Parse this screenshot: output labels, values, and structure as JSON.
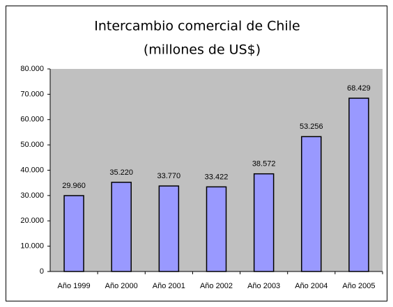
{
  "chart_data": {
    "type": "bar",
    "title": "Intercambio comercial de Chile",
    "subtitle": "(millones de US$)",
    "categories": [
      "Año 1999",
      "Año 2000",
      "Año 2001",
      "Año 2002",
      "Año 2003",
      "Año 2004",
      "Año 2005"
    ],
    "values": [
      29960,
      35220,
      33770,
      33422,
      38572,
      53256,
      68429
    ],
    "value_labels": [
      "29.960",
      "35.220",
      "33.770",
      "33.422",
      "38.572",
      "53.256",
      "68.429"
    ],
    "color": "#9999ff",
    "ylim": [
      0,
      80000
    ],
    "yticks": [
      0,
      {
        "value": 10000,
        "label": "10.000"
      },
      {
        "value": 20000,
        "label": "20.000"
      },
      {
        "value": 30000,
        "label": "30.000"
      },
      {
        "value": 40000,
        "label": "40.000"
      },
      {
        "value": 50000,
        "label": "50.000"
      },
      {
        "value": 60000,
        "label": "60.000"
      },
      {
        "value": 70000,
        "label": "70.000"
      },
      {
        "value": 80000,
        "label": "80.000"
      }
    ],
    "grid": false
  }
}
